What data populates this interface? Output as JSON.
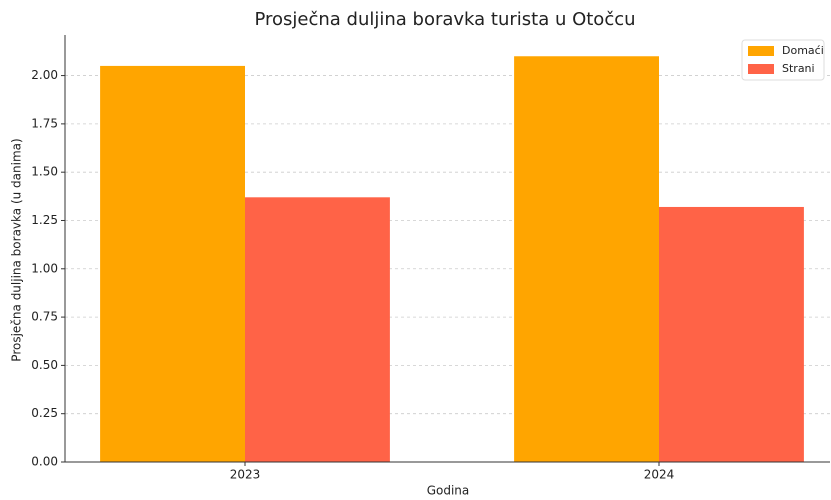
{
  "chart_data": {
    "type": "bar",
    "title": "Prosječna duljina boravka turista u Otočcu",
    "x_label": "Godina",
    "y_label": "Prosječna duljina boravka (u danima)",
    "categories": [
      "2023",
      "2024"
    ],
    "series": [
      {
        "name": "Domaći",
        "color": "#ffa500",
        "values": [
          2.05,
          2.1
        ]
      },
      {
        "name": "Strani",
        "color": "#ff6347",
        "values": [
          1.37,
          1.32
        ]
      }
    ],
    "ylim": [
      0,
      2.21
    ],
    "yticks": [
      {
        "value": 0,
        "label": "0.00"
      },
      {
        "value": 0.25,
        "label": "0.25"
      },
      {
        "value": 0.5,
        "label": "0.50"
      },
      {
        "value": 0.75,
        "label": "0.75"
      },
      {
        "value": 1,
        "label": "1.00"
      },
      {
        "value": 1.25,
        "label": "1.25"
      },
      {
        "value": 1.5,
        "label": "1.50"
      },
      {
        "value": 1.75,
        "label": "1.75"
      },
      {
        "value": 2,
        "label": "2.00"
      }
    ],
    "grid": true,
    "legend": "upper right"
  }
}
